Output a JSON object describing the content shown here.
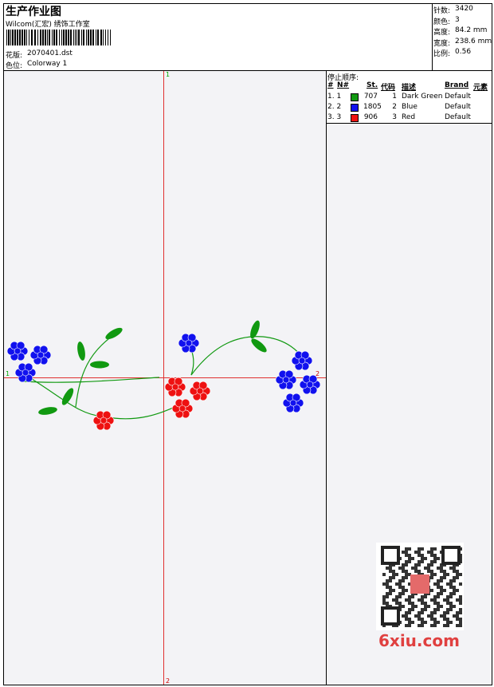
{
  "header": {
    "title": "生产作业图",
    "company": "Wilcom(汇宏) 绣饰工作室",
    "design_label": "花版:",
    "design": "2070401.dst",
    "colorway_label": "色位:",
    "colorway": "Colorway 1"
  },
  "info": [
    {
      "label": "针数:",
      "value": "3420"
    },
    {
      "label": "颜色:",
      "value": "3"
    },
    {
      "label": "高度:",
      "value": "84.2 mm"
    },
    {
      "label": "宽度:",
      "value": "238.6 mm"
    },
    {
      "label": "比例:",
      "value": "0.56"
    }
  ],
  "stop_sequence": {
    "title": "停止顺序:",
    "columns": [
      "#",
      "N#",
      "St.",
      "代码",
      "描述",
      "Brand",
      "元素"
    ],
    "rows": [
      {
        "index": "1. 1",
        "color": "#119911",
        "stitches": "707",
        "code": "1",
        "description": "Dark Green",
        "brand": "Default"
      },
      {
        "index": "2. 2",
        "color": "#1111ee",
        "stitches": "1805",
        "code": "2",
        "description": "Blue",
        "brand": "Default"
      },
      {
        "index": "3. 3",
        "color": "#ee1111",
        "stitches": "906",
        "code": "3",
        "description": "Red",
        "brand": "Default"
      }
    ]
  },
  "axes": {
    "top": "1",
    "bottom": "2",
    "left": "1",
    "right": "2"
  },
  "watermark": "6xiu.com"
}
